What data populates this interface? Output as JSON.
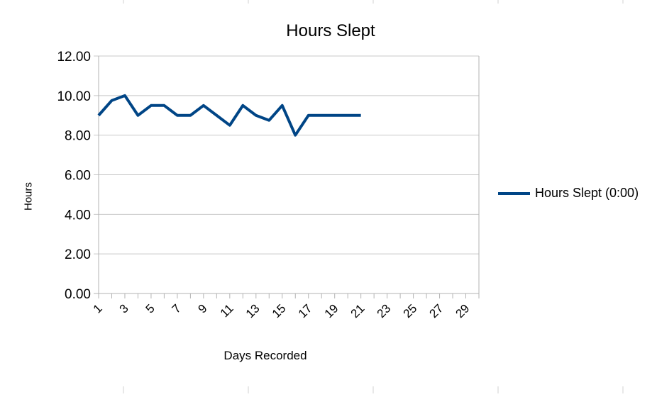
{
  "chart_data": {
    "type": "line",
    "title": "Hours Slept",
    "xlabel": "Days Recorded",
    "ylabel": "Hours",
    "x_ticks": [
      "1",
      "3",
      "5",
      "7",
      "9",
      "11",
      "13",
      "15",
      "17",
      "19",
      "21",
      "23",
      "25",
      "27",
      "29"
    ],
    "x_range": [
      1,
      30
    ],
    "ylim": [
      0,
      12
    ],
    "y_ticks": [
      "0.00",
      "2.00",
      "4.00",
      "6.00",
      "8.00",
      "10.00",
      "12.00"
    ],
    "grid": true,
    "legend_position": "right",
    "series": [
      {
        "name": "Hours Slept (0:00)",
        "color": "#004586",
        "x": [
          1,
          2,
          3,
          4,
          5,
          6,
          7,
          8,
          9,
          10,
          11,
          12,
          13,
          14,
          15,
          16,
          17,
          18,
          19,
          20,
          21
        ],
        "values": [
          9.0,
          9.75,
          10.0,
          9.0,
          9.5,
          9.5,
          9.0,
          9.0,
          9.5,
          9.0,
          8.5,
          9.5,
          9.0,
          8.75,
          9.5,
          8.0,
          9.0,
          9.0,
          9.0,
          9.0,
          9.0
        ]
      }
    ]
  }
}
